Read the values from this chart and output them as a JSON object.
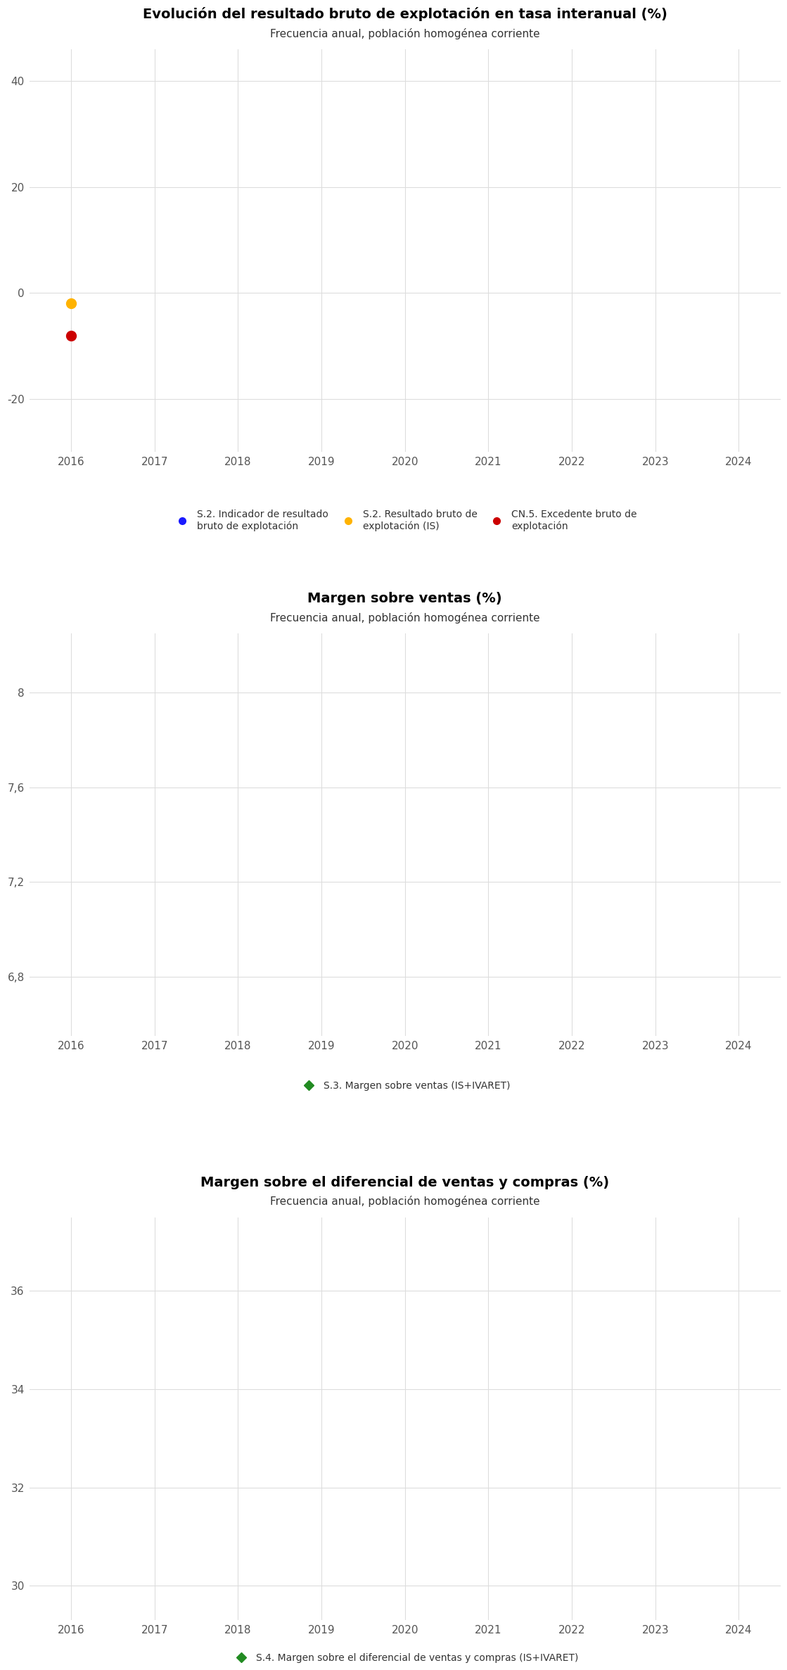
{
  "chart1": {
    "title": "Evolución del resultado bruto de explotación en tasa interanual (%)",
    "subtitle": "Frecuencia anual, población homogénea corriente",
    "ylim": [
      -30,
      46
    ],
    "yticks": [
      -20,
      0,
      20,
      40
    ],
    "xlim": [
      2015.5,
      2024.5
    ],
    "xticks": [
      2016,
      2017,
      2018,
      2019,
      2020,
      2021,
      2022,
      2023,
      2024
    ],
    "series": [
      {
        "label": "S.2. Indicador de resultado\nbruto de explotación",
        "color": "#1a1aff",
        "marker": "o",
        "data": []
      },
      {
        "label": "S.2. Resultado bruto de\nexplotación (IS)",
        "color": "#FFB300",
        "marker": "o",
        "data": [
          [
            2016,
            -2.0
          ]
        ]
      },
      {
        "label": "CN.5. Excedente bruto de\nexplotación",
        "color": "#CC0000",
        "marker": "o",
        "data": [
          [
            2016,
            -8.0
          ]
        ]
      }
    ]
  },
  "chart2": {
    "title": "Margen sobre ventas (%)",
    "subtitle": "Frecuencia anual, población homogénea corriente",
    "ylim": [
      6.55,
      8.25
    ],
    "yticks": [
      6.8,
      7.2,
      7.6,
      8.0
    ],
    "xlim": [
      2015.5,
      2024.5
    ],
    "xticks": [
      2016,
      2017,
      2018,
      2019,
      2020,
      2021,
      2022,
      2023,
      2024
    ],
    "series": [
      {
        "label": "S.3. Margen sobre ventas (IS+IVARET)",
        "color": "#228B22",
        "marker": "D",
        "data": []
      }
    ]
  },
  "chart3": {
    "title": "Margen sobre el diferencial de ventas y compras (%)",
    "subtitle": "Frecuencia anual, población homogénea corriente",
    "ylim": [
      29.3,
      37.5
    ],
    "yticks": [
      30,
      32,
      34,
      36
    ],
    "xlim": [
      2015.5,
      2024.5
    ],
    "xticks": [
      2016,
      2017,
      2018,
      2019,
      2020,
      2021,
      2022,
      2023,
      2024
    ],
    "series": [
      {
        "label": "S.4. Margen sobre el diferencial de ventas y compras (IS+IVARET)",
        "color": "#228B22",
        "marker": "D",
        "data": []
      }
    ]
  },
  "background_color": "#FFFFFF",
  "grid_color": "#DDDDDD",
  "title_fontsize": 14,
  "subtitle_fontsize": 11,
  "tick_fontsize": 11,
  "legend_fontsize": 10,
  "markersize": 10
}
